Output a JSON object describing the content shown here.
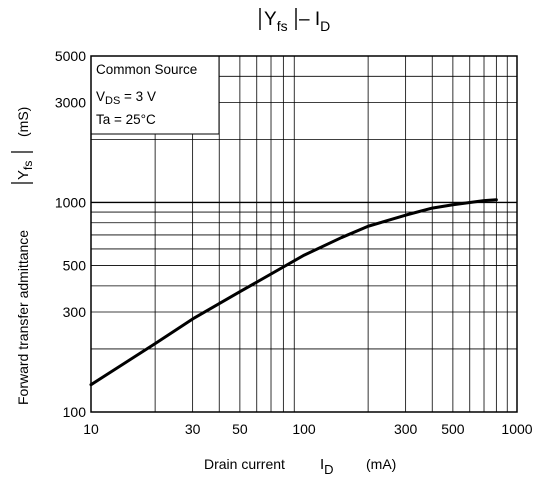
{
  "chart_data": {
    "type": "line",
    "title": {
      "bar_text": "Y",
      "bar_sub": "fs",
      "suffix": " – I",
      "suffix_sub": "D"
    },
    "xlabel": {
      "main": "Drain current",
      "symbol": "I",
      "symbol_sub": "D",
      "unit": "(mA)"
    },
    "ylabel": {
      "main": "Forward transfer admittance",
      "symbol": "Y",
      "symbol_sub": "fs",
      "unit": "(mS)"
    },
    "x_scale": "log",
    "y_scale": "log",
    "xlim": [
      10,
      1000
    ],
    "ylim": [
      100,
      5000
    ],
    "x_ticks": [
      {
        "value": 10,
        "label": "10"
      },
      {
        "value": 30,
        "label": "30"
      },
      {
        "value": 50,
        "label": "50"
      },
      {
        "value": 100,
        "label": "100"
      },
      {
        "value": 300,
        "label": "300"
      },
      {
        "value": 500,
        "label": "500"
      },
      {
        "value": 1000,
        "label": "1000"
      }
    ],
    "y_ticks": [
      {
        "value": 100,
        "label": "100"
      },
      {
        "value": 300,
        "label": "300"
      },
      {
        "value": 500,
        "label": "500"
      },
      {
        "value": 1000,
        "label": "1000"
      },
      {
        "value": 3000,
        "label": "3000"
      },
      {
        "value": 5000,
        "label": "5000"
      }
    ],
    "grid": true,
    "annotations": {
      "line1": "Common Source",
      "line2_symbol": "V",
      "line2_sub": "DS",
      "line2_rest": " = 3 V",
      "line3": "Ta = 25°C"
    },
    "series": [
      {
        "x": [
          10,
          20,
          30,
          50,
          100,
          150,
          200,
          300,
          400,
          500,
          700,
          800
        ],
        "y": [
          135,
          212,
          278,
          375,
          560,
          680,
          770,
          870,
          940,
          975,
          1020,
          1030
        ]
      }
    ]
  }
}
